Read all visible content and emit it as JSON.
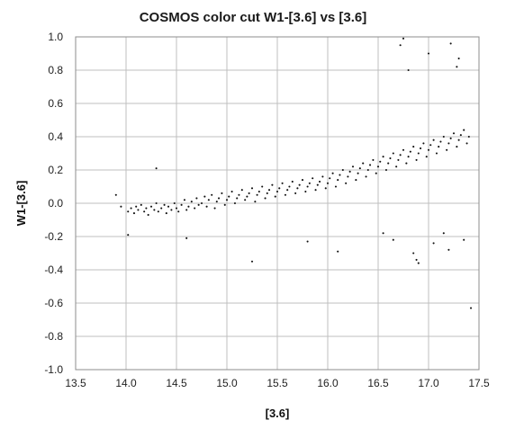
{
  "chart_data": {
    "type": "scatter",
    "title": "COSMOS color cut W1-[3.6] vs [3.6]",
    "xlabel": "[3.6]",
    "ylabel": "W1-[3.6]",
    "xlim": [
      13.5,
      17.5
    ],
    "ylim": [
      -1.0,
      1.0
    ],
    "x_ticks": [
      "13.5",
      "14.0",
      "14.5",
      "15.0",
      "15.5",
      "16.0",
      "16.5",
      "17.0",
      "17.5"
    ],
    "y_ticks": [
      "1.0",
      "0.8",
      "0.6",
      "0.4",
      "0.2",
      "0.0",
      "-0.2",
      "-0.4",
      "-0.6",
      "-0.8",
      "-1.0"
    ],
    "grid": true,
    "legend": "none",
    "marker_color": "#111111",
    "series": [
      {
        "x": [
          13.9,
          13.95,
          14.02,
          14.05,
          14.08,
          14.1,
          14.12,
          14.15,
          14.18,
          14.2,
          14.22,
          14.25,
          14.28,
          14.3,
          14.32,
          14.35,
          14.38,
          14.4,
          14.42,
          14.45,
          14.48,
          14.5,
          14.52,
          14.55,
          14.58,
          14.6,
          14.62,
          14.65,
          14.68,
          14.7,
          14.72,
          14.75,
          14.78,
          14.8,
          14.82,
          14.85,
          14.88,
          14.9,
          14.92,
          14.95,
          14.98,
          15.0,
          15.02,
          15.05,
          15.08,
          15.1,
          15.12,
          15.15,
          15.18,
          15.2,
          15.22,
          15.25,
          15.28,
          15.3,
          15.32,
          15.35,
          15.38,
          15.4,
          15.42,
          15.45,
          15.48,
          15.5,
          15.52,
          15.55,
          15.58,
          15.6,
          15.62,
          15.65,
          15.68,
          15.7,
          15.72,
          15.75,
          15.78,
          15.8,
          15.82,
          15.85,
          15.88,
          15.9,
          15.92,
          15.95,
          15.98,
          16.0,
          16.02,
          16.05,
          16.08,
          16.1,
          16.12,
          16.15,
          16.18,
          16.2,
          16.22,
          16.25,
          16.28,
          16.3,
          16.32,
          16.35,
          16.38,
          16.4,
          16.42,
          16.45,
          16.48,
          16.5,
          16.52,
          16.55,
          16.58,
          16.6,
          16.62,
          16.65,
          16.68,
          16.7,
          16.72,
          16.75,
          16.78,
          16.8,
          16.82,
          16.85,
          16.88,
          16.9,
          16.92,
          16.95,
          16.98,
          17.0,
          17.02,
          17.05,
          17.08,
          17.1,
          17.12,
          17.15,
          17.18,
          17.2,
          17.22,
          17.25,
          17.28,
          17.3,
          17.32,
          17.35,
          17.38,
          17.4,
          14.02,
          14.3,
          14.6,
          15.25,
          15.8,
          16.1,
          16.55,
          16.65,
          16.72,
          16.8,
          16.85,
          16.9,
          17.05,
          17.15,
          17.22,
          17.28,
          17.35,
          17.42,
          16.75,
          16.88,
          17.0,
          17.2,
          17.3
        ],
        "y": [
          0.05,
          -0.02,
          -0.05,
          -0.03,
          -0.06,
          -0.02,
          -0.04,
          -0.01,
          -0.05,
          -0.03,
          -0.07,
          -0.02,
          -0.04,
          0.0,
          -0.05,
          -0.03,
          -0.01,
          -0.06,
          -0.02,
          -0.04,
          0.0,
          -0.03,
          -0.05,
          -0.01,
          0.02,
          -0.04,
          -0.02,
          0.01,
          -0.03,
          0.03,
          -0.01,
          0.0,
          0.04,
          -0.02,
          0.02,
          0.05,
          -0.03,
          0.01,
          0.03,
          0.06,
          -0.01,
          0.02,
          0.04,
          0.07,
          0.0,
          0.03,
          0.05,
          0.08,
          0.02,
          0.04,
          0.06,
          0.09,
          0.01,
          0.05,
          0.07,
          0.1,
          0.03,
          0.06,
          0.08,
          0.11,
          0.04,
          0.07,
          0.09,
          0.12,
          0.05,
          0.08,
          0.1,
          0.13,
          0.06,
          0.09,
          0.11,
          0.14,
          0.07,
          0.1,
          0.12,
          0.15,
          0.08,
          0.11,
          0.13,
          0.16,
          0.09,
          0.12,
          0.15,
          0.18,
          0.1,
          0.14,
          0.17,
          0.2,
          0.12,
          0.16,
          0.19,
          0.22,
          0.14,
          0.18,
          0.21,
          0.24,
          0.16,
          0.2,
          0.23,
          0.26,
          0.18,
          0.22,
          0.25,
          0.28,
          0.2,
          0.24,
          0.27,
          0.3,
          0.22,
          0.26,
          0.29,
          0.32,
          0.24,
          0.28,
          0.31,
          0.34,
          0.26,
          0.3,
          0.33,
          0.36,
          0.28,
          0.32,
          0.35,
          0.38,
          0.3,
          0.34,
          0.37,
          0.4,
          0.32,
          0.36,
          0.39,
          0.42,
          0.34,
          0.38,
          0.41,
          0.44,
          0.36,
          0.4,
          -0.19,
          0.21,
          -0.21,
          -0.35,
          -0.23,
          -0.29,
          -0.18,
          -0.22,
          0.95,
          0.8,
          -0.3,
          -0.36,
          -0.24,
          -0.18,
          0.96,
          0.82,
          -0.22,
          -0.63,
          0.99,
          -0.34,
          0.9,
          -0.28,
          0.87
        ]
      }
    ]
  }
}
